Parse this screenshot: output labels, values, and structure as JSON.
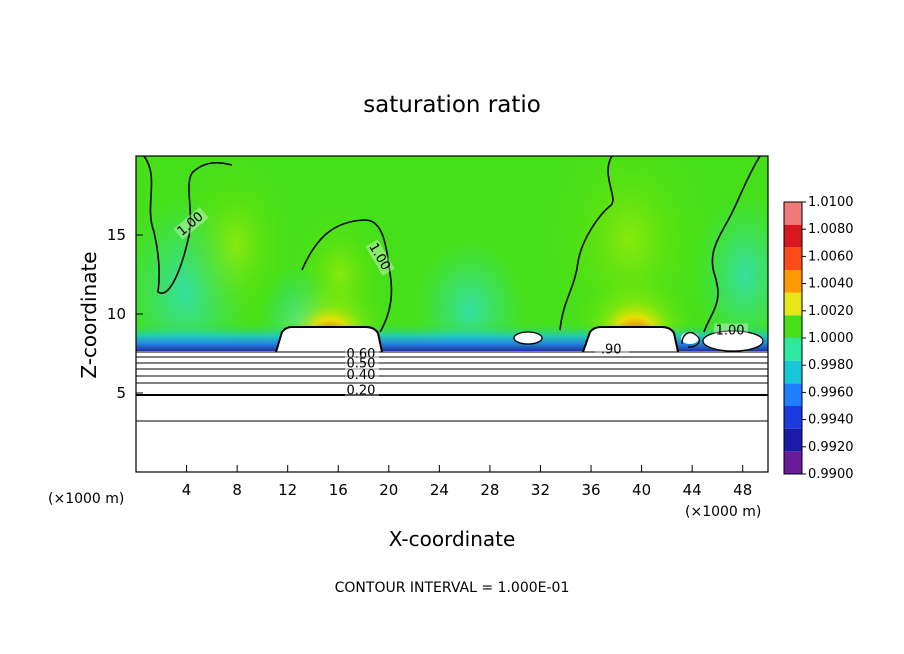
{
  "chart_data": {
    "type": "heatmap",
    "title": "saturation ratio",
    "xlabel": "X-coordinate",
    "ylabel": "Z-coordinate",
    "x_unit": "(×1000 m)",
    "x_unit_right": "(×1000 m)",
    "footer": "CONTOUR INTERVAL = 1.000E-01",
    "xlim": [
      0,
      50
    ],
    "ylim": [
      0,
      20
    ],
    "x_ticks": [
      4,
      8,
      12,
      16,
      20,
      24,
      28,
      32,
      36,
      40,
      44,
      48
    ],
    "y_ticks": [
      5,
      10,
      15
    ],
    "colorbar": {
      "levels": [
        0.99,
        0.992,
        0.994,
        0.996,
        0.998,
        1.0,
        1.002,
        1.004,
        1.006,
        1.008,
        1.01
      ],
      "labels": [
        "0.9900",
        "0.9920",
        "0.9940",
        "0.9960",
        "0.9980",
        "1.0000",
        "1.0020",
        "1.0040",
        "1.0060",
        "1.0080",
        "1.0100"
      ],
      "colors": [
        "#6a1b9a",
        "#1a1aa6",
        "#1c3ae0",
        "#1f7dff",
        "#18c8d8",
        "#2ee8a0",
        "#46e01a",
        "#e6e61a",
        "#ff9a00",
        "#ff4a1a",
        "#d8181e",
        "#f07a7a"
      ]
    },
    "contour_labels": [
      {
        "text": "1.00",
        "x": 4.5,
        "z": 15.5,
        "angle": -40
      },
      {
        "text": "1.00",
        "x": 19.0,
        "z": 13.5,
        "angle": 60
      },
      {
        "text": "1.00",
        "x": 47.0,
        "z": 8.7,
        "angle": 0
      },
      {
        "text": ".90",
        "x": 37.6,
        "z": 7.5,
        "angle": 0
      },
      {
        "text": "0.60",
        "x": 17.8,
        "z": 7.2,
        "angle": 0
      },
      {
        "text": "0.50",
        "x": 17.8,
        "z": 6.6,
        "angle": 0
      },
      {
        "text": "0.40",
        "x": 17.8,
        "z": 5.9,
        "angle": 0
      },
      {
        "text": "0.20",
        "x": 17.8,
        "z": 4.9,
        "angle": 0
      }
    ],
    "features": [
      {
        "name": "mountain-left",
        "x_range": [
          11.2,
          19.0
        ],
        "z_range": [
          7.6,
          8.8
        ]
      },
      {
        "name": "mountain-right",
        "x_range": [
          36.0,
          42.5
        ],
        "z_range": [
          7.6,
          8.8
        ]
      }
    ]
  }
}
